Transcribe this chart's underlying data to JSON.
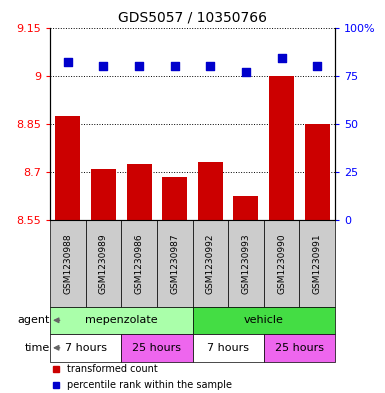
{
  "title": "GDS5057 / 10350766",
  "samples": [
    "GSM1230988",
    "GSM1230989",
    "GSM1230986",
    "GSM1230987",
    "GSM1230992",
    "GSM1230993",
    "GSM1230990",
    "GSM1230991"
  ],
  "bar_values": [
    8.875,
    8.71,
    8.725,
    8.685,
    8.73,
    8.625,
    9.0,
    8.85
  ],
  "bar_bottom": 8.55,
  "percentile_values": [
    82,
    80,
    80,
    80,
    80,
    77,
    84,
    80
  ],
  "ylim_left": [
    8.55,
    9.15
  ],
  "ylim_right": [
    0,
    100
  ],
  "yticks_left": [
    8.55,
    8.7,
    8.85,
    9.0,
    9.15
  ],
  "ytick_labels_left": [
    "8.55",
    "8.7",
    "8.85",
    "9",
    "9.15"
  ],
  "yticks_right": [
    0,
    25,
    50,
    75,
    100
  ],
  "ytick_labels_right": [
    "0",
    "25",
    "50",
    "75",
    "100%"
  ],
  "bar_color": "#cc0000",
  "dot_color": "#0000cc",
  "sample_box_color": "#cccccc",
  "agent_groups": [
    {
      "label": "mepenzolate",
      "start": 0,
      "end": 4,
      "color": "#aaffaa"
    },
    {
      "label": "vehicle",
      "start": 4,
      "end": 8,
      "color": "#44dd44"
    }
  ],
  "time_groups": [
    {
      "label": "7 hours",
      "start": 0,
      "end": 2,
      "color": "#ffffff"
    },
    {
      "label": "25 hours",
      "start": 2,
      "end": 4,
      "color": "#ee66ee"
    },
    {
      "label": "7 hours",
      "start": 4,
      "end": 6,
      "color": "#ffffff"
    },
    {
      "label": "25 hours",
      "start": 6,
      "end": 8,
      "color": "#ee66ee"
    }
  ],
  "legend_items": [
    {
      "label": "transformed count",
      "color": "#cc0000"
    },
    {
      "label": "percentile rank within the sample",
      "color": "#0000cc"
    }
  ],
  "bar_width": 0.7,
  "dot_size": 40,
  "agent_label": "agent",
  "time_label": "time",
  "sample_fontsize": 6.5,
  "label_fontsize": 8,
  "title_fontsize": 10
}
